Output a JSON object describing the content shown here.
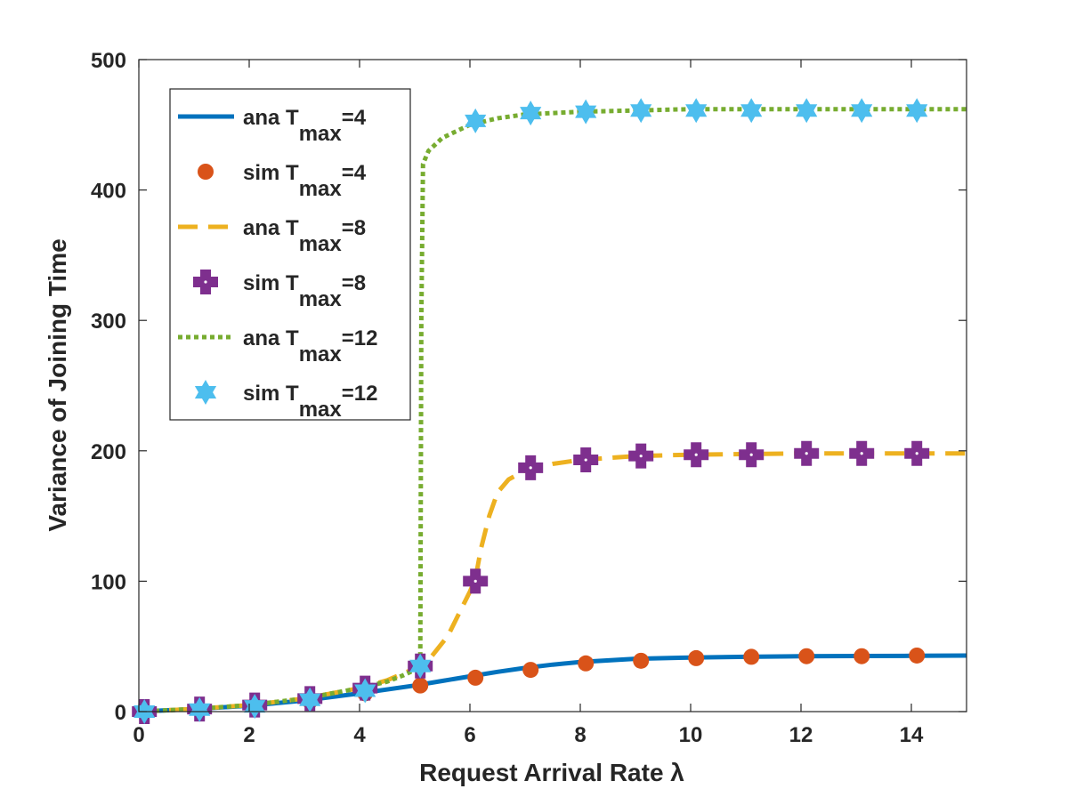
{
  "chart_data": {
    "type": "line",
    "title": "",
    "xlabel": "Request Arrival Rate λ",
    "ylabel": "Variance of Joining Time",
    "xlim": [
      0,
      15
    ],
    "ylim": [
      0,
      500
    ],
    "xticks": [
      0,
      2,
      4,
      6,
      8,
      10,
      12,
      14
    ],
    "xtick_labels": [
      "0",
      "2",
      "4",
      "6",
      "8",
      "10",
      "12",
      "14"
    ],
    "yticks": [
      0,
      100,
      200,
      300,
      400,
      500
    ],
    "ytick_labels": [
      "0",
      "100",
      "200",
      "300",
      "400",
      "500"
    ],
    "grid": false,
    "legend_position": "top-left",
    "colors": {
      "blue": "#0072BD",
      "orange": "#D95319",
      "yellow": "#EDB120",
      "purple": "#7E2F8E",
      "green": "#77AC30",
      "cyan": "#4DBEEE"
    },
    "series": [
      {
        "name": "ana T_max=4",
        "legend_main": "ana T",
        "legend_sub": "max",
        "legend_suffix": "=4",
        "kind": "line",
        "style": "solid",
        "color": "#0072BD",
        "x": [
          0,
          1,
          2,
          3,
          4,
          5,
          5.5,
          6,
          6.5,
          7,
          7.5,
          8,
          9,
          10,
          11,
          12,
          13,
          14,
          15
        ],
        "y": [
          0,
          2,
          4.5,
          8.5,
          14,
          20,
          23.5,
          27,
          30.5,
          33.5,
          36,
          38,
          40.5,
          41.5,
          42,
          42.4,
          42.6,
          42.8,
          43
        ]
      },
      {
        "name": "sim T_max=4",
        "legend_main": "sim T",
        "legend_sub": "max",
        "legend_suffix": "=4",
        "kind": "markers",
        "marker": "circle",
        "color": "#D95319",
        "x": [
          0.1,
          1.1,
          2.1,
          3.1,
          4.1,
          5.1,
          6.1,
          7.1,
          8.1,
          9.1,
          10.1,
          11.1,
          12.1,
          13.1,
          14.1
        ],
        "y": [
          0,
          1.5,
          4,
          8,
          14,
          20,
          26,
          32,
          37,
          39,
          41,
          42,
          42.5,
          42.5,
          43
        ]
      },
      {
        "name": "ana T_max=8",
        "legend_main": "ana T",
        "legend_sub": "max",
        "legend_suffix": "=8",
        "kind": "line",
        "style": "dashed",
        "color": "#EDB120",
        "x": [
          0,
          1,
          2,
          3,
          4,
          4.5,
          5,
          5.3,
          5.6,
          5.8,
          6.0,
          6.1,
          6.2,
          6.35,
          6.5,
          6.7,
          7,
          7.5,
          8,
          9,
          10,
          12,
          15
        ],
        "y": [
          0,
          2,
          5,
          10,
          18,
          24,
          33,
          42,
          58,
          75,
          92,
          102,
          125,
          150,
          168,
          178,
          185,
          190,
          193,
          196,
          197,
          198,
          198
        ]
      },
      {
        "name": "sim T_max=8",
        "legend_main": "sim T",
        "legend_sub": "max",
        "legend_suffix": "=8",
        "kind": "markers",
        "marker": "plus",
        "color": "#7E2F8E",
        "x": [
          0.1,
          1.1,
          2.1,
          3.1,
          4.1,
          5.1,
          6.1,
          7.1,
          8.1,
          9.1,
          10.1,
          11.1,
          12.1,
          13.1,
          14.1
        ],
        "y": [
          0,
          2,
          5,
          10,
          18,
          35,
          100,
          187,
          193,
          196,
          197,
          197,
          198,
          198,
          198
        ]
      },
      {
        "name": "ana T_max=12",
        "legend_main": "ana T",
        "legend_sub": "max",
        "legend_suffix": "=12",
        "kind": "line",
        "style": "dotted",
        "color": "#77AC30",
        "x": [
          0,
          1,
          2,
          3,
          4,
          4.5,
          4.8,
          5.0,
          5.1,
          5.12,
          5.15,
          5.25,
          5.5,
          6,
          6.5,
          7,
          8,
          9,
          10,
          12,
          15
        ],
        "y": [
          0,
          2,
          5,
          10,
          18,
          23,
          28,
          32,
          36,
          300,
          420,
          430,
          440,
          450,
          455,
          458,
          460,
          461,
          462,
          462,
          462
        ]
      },
      {
        "name": "sim T_max=12",
        "legend_main": "sim T",
        "legend_sub": "max",
        "legend_suffix": "=12",
        "kind": "markers",
        "marker": "hexagram",
        "color": "#4DBEEE",
        "x": [
          0.1,
          1.1,
          2.1,
          3.1,
          4.1,
          5.1,
          6.1,
          7.1,
          8.1,
          9.1,
          10.1,
          11.1,
          12.1,
          13.1,
          14.1
        ],
        "y": [
          0,
          1.5,
          4,
          9,
          16,
          35,
          453,
          459,
          460,
          461,
          461,
          461,
          461,
          461,
          461
        ]
      }
    ]
  }
}
